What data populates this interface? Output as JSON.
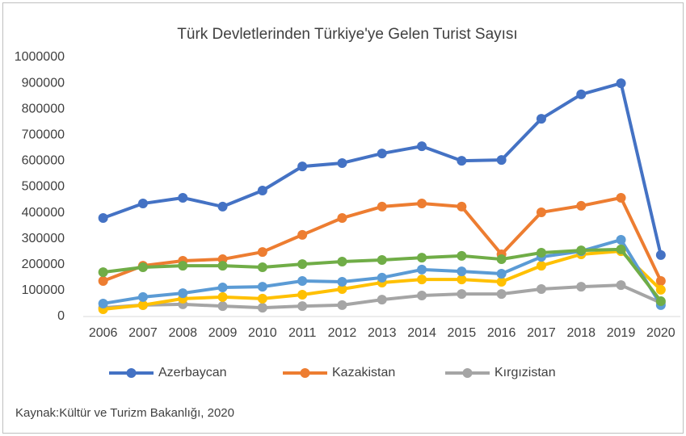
{
  "chart_data": {
    "type": "line",
    "title": "Türk Devletlerinden Türkiye'ye Gelen Turist Sayısı",
    "source": "Kaynak:Kültür ve Turizm Bakanlığı, 2020",
    "categories": [
      "2006",
      "2007",
      "2008",
      "2009",
      "2010",
      "2011",
      "2012",
      "2013",
      "2014",
      "2015",
      "2016",
      "2017",
      "2018",
      "2019",
      "2020"
    ],
    "series": [
      {
        "name": "Azerbaycan",
        "color": "#4472c4",
        "values": [
          380000,
          436000,
          458000,
          424000,
          486000,
          579000,
          592000,
          629000,
          657000,
          601000,
          604000,
          763000,
          857000,
          900000,
          237000
        ]
      },
      {
        "name": "Kazakistan",
        "color": "#ed7d31",
        "values": [
          137000,
          196000,
          215000,
          221000,
          249000,
          315000,
          380000,
          424000,
          436000,
          424000,
          240000,
          402000,
          427000,
          458000,
          137000
        ]
      },
      {
        "name": "Kırgızistan",
        "color": "#a5a5a5",
        "values": [
          34000,
          44000,
          47000,
          40000,
          34000,
          40000,
          44000,
          65000,
          81000,
          87000,
          87000,
          106000,
          115000,
          121000,
          53000
        ]
      },
      {
        "color": "#ffc000",
        "values": [
          28000,
          44000,
          69000,
          75000,
          69000,
          84000,
          106000,
          131000,
          143000,
          143000,
          134000,
          196000,
          240000,
          252000,
          103000
        ]
      },
      {
        "color": "#5b9bd5",
        "values": [
          50000,
          75000,
          90000,
          112000,
          115000,
          137000,
          134000,
          150000,
          181000,
          174000,
          165000,
          230000,
          252000,
          296000,
          44000
        ]
      },
      {
        "color": "#70ad47",
        "values": [
          171000,
          190000,
          196000,
          196000,
          190000,
          202000,
          212000,
          218000,
          227000,
          234000,
          221000,
          246000,
          255000,
          259000,
          59000
        ]
      }
    ],
    "ylim": [
      0,
      1000000
    ],
    "yticks": [
      0,
      100000,
      200000,
      300000,
      400000,
      500000,
      600000,
      700000,
      800000,
      900000,
      1000000
    ],
    "grid": false
  }
}
